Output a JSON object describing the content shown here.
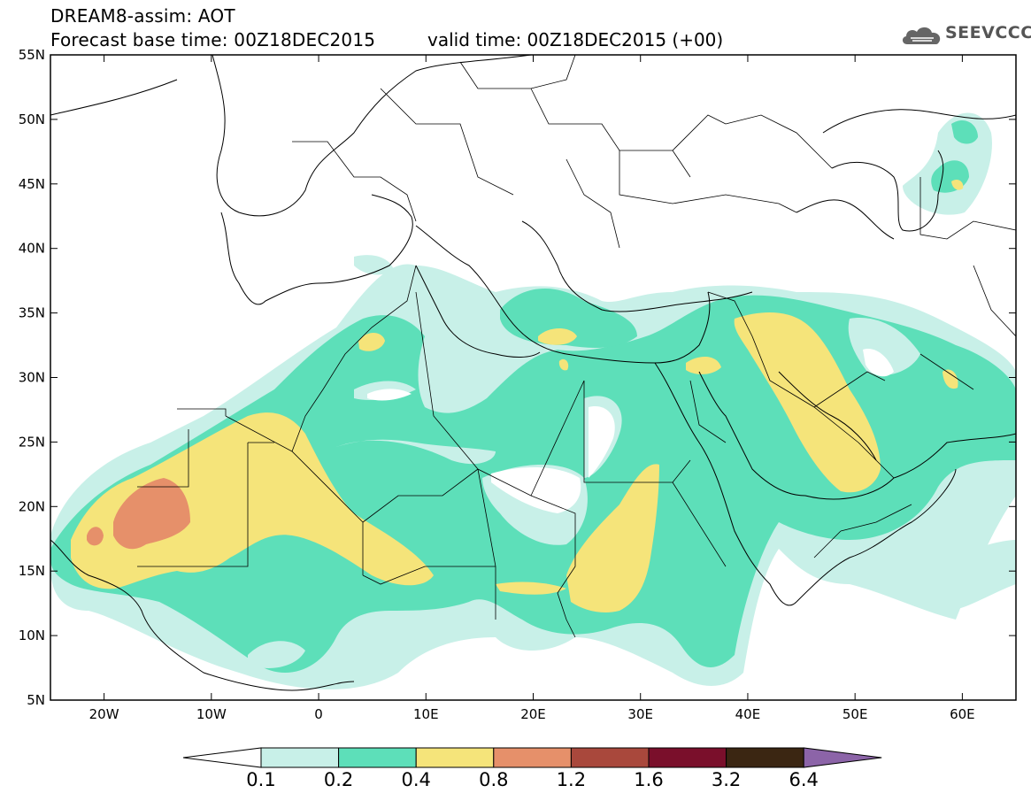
{
  "header": {
    "title": "DREAM8-assim: AOT",
    "base_time": "Forecast base time: 00Z18DEC2015",
    "valid_time": "valid time: 00Z18DEC2015 (+00)"
  },
  "logo": {
    "text": "SEEVCCC",
    "icon": "cloud-icon"
  },
  "axes": {
    "lon_range": [
      -25,
      65
    ],
    "lat_range": [
      5,
      55
    ],
    "x_ticks": [
      "20W",
      "10W",
      "0",
      "10E",
      "20E",
      "30E",
      "40E",
      "50E",
      "60E"
    ],
    "x_tick_values": [
      -20,
      -10,
      0,
      10,
      20,
      30,
      40,
      50,
      60
    ],
    "y_ticks": [
      "5N",
      "10N",
      "15N",
      "20N",
      "25N",
      "30N",
      "35N",
      "40N",
      "45N",
      "50N",
      "55N"
    ],
    "y_tick_values": [
      5,
      10,
      15,
      20,
      25,
      30,
      35,
      40,
      45,
      50,
      55
    ]
  },
  "colorbar": {
    "labels": [
      "0.1",
      "0.2",
      "0.4",
      "0.8",
      "1.2",
      "1.6",
      "3.2",
      "6.4"
    ],
    "colors": [
      "#ffffff",
      "#c8f0e8",
      "#5ddfb9",
      "#f5e47a",
      "#e6906a",
      "#a9483c",
      "#7a0f2b",
      "#3b2612",
      "#8c64a8"
    ]
  }
}
